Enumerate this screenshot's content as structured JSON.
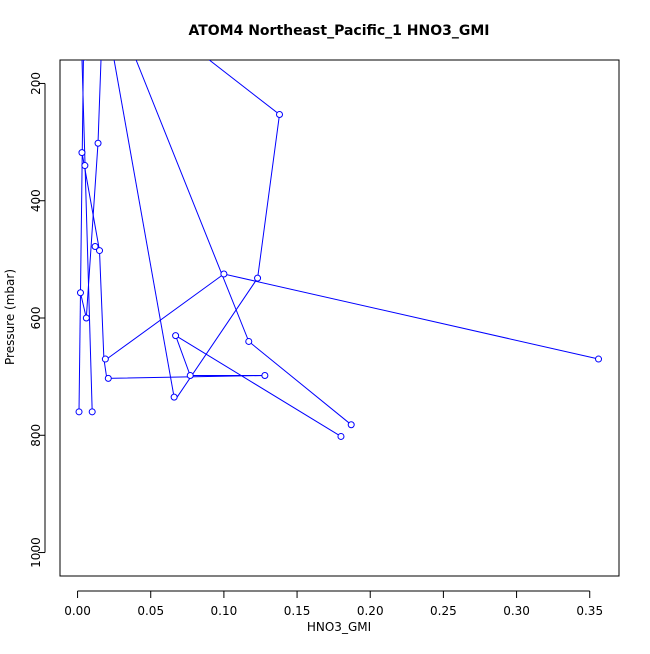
{
  "chart_data": {
    "type": "line",
    "title": "ATOM4 Northeast_Pacific_1 HNO3_GMI",
    "xlabel": "HNO3_GMI",
    "ylabel": "Pressure (mbar)",
    "xlim": [
      -0.012,
      0.37
    ],
    "ylim": [
      1040,
      160
    ],
    "y_reversed": true,
    "x_ticks": [
      0.0,
      0.05,
      0.1,
      0.15,
      0.2,
      0.25,
      0.3,
      0.35
    ],
    "x_tick_labels": [
      "0.00",
      "0.05",
      "0.10",
      "0.15",
      "0.20",
      "0.25",
      "0.30",
      "0.35"
    ],
    "y_ticks": [
      200,
      400,
      600,
      800,
      1000
    ],
    "y_tick_labels": [
      "200",
      "400",
      "600",
      "800",
      "1000"
    ],
    "grid": false,
    "series_color": "#0000ff",
    "marker": "open-circle",
    "line_segments": [
      {
        "x": [
          0.001,
          0.004
        ],
        "y": [
          760,
          160
        ]
      },
      {
        "x": [
          0.01,
          0.003
        ],
        "y": [
          760,
          160
        ]
      },
      {
        "x": [
          0.006,
          0.005
        ],
        "y": [
          160,
          160
        ]
      },
      {
        "x": [
          0.003,
          0.015,
          0.018,
          0.02,
          0.128,
          0.077,
          0.067,
          0.18
        ],
        "y": [
          318,
          485,
          670,
          703,
          698,
          698,
          630,
          802
        ]
      },
      {
        "x": [
          0.187,
          0.117,
          0.04
        ],
        "y": [
          782,
          640,
          160
        ]
      },
      {
        "x": [
          0.066,
          0.025
        ],
        "y": [
          735,
          160
        ]
      },
      {
        "x": [
          0.002,
          0.006,
          0.014,
          0.016
        ],
        "y": [
          557,
          600,
          302,
          160
        ]
      },
      {
        "x": [
          0.02,
          0.1,
          0.356
        ],
        "y": [
          670,
          525,
          670
        ]
      },
      {
        "x": [
          0.068,
          0.123,
          0.138,
          0.09
        ],
        "y": [
          735,
          532,
          253,
          160
        ]
      }
    ],
    "points": [
      {
        "x": 0.001,
        "y": 760
      },
      {
        "x": 0.01,
        "y": 760
      },
      {
        "x": 0.003,
        "y": 318
      },
      {
        "x": 0.005,
        "y": 340
      },
      {
        "x": 0.002,
        "y": 557
      },
      {
        "x": 0.006,
        "y": 600
      },
      {
        "x": 0.014,
        "y": 302
      },
      {
        "x": 0.012,
        "y": 478
      },
      {
        "x": 0.015,
        "y": 485
      },
      {
        "x": 0.019,
        "y": 670
      },
      {
        "x": 0.021,
        "y": 703
      },
      {
        "x": 0.067,
        "y": 630
      },
      {
        "x": 0.066,
        "y": 735
      },
      {
        "x": 0.077,
        "y": 698
      },
      {
        "x": 0.1,
        "y": 525
      },
      {
        "x": 0.117,
        "y": 640
      },
      {
        "x": 0.123,
        "y": 532
      },
      {
        "x": 0.128,
        "y": 698
      },
      {
        "x": 0.138,
        "y": 253
      },
      {
        "x": 0.18,
        "y": 802
      },
      {
        "x": 0.187,
        "y": 782
      },
      {
        "x": 0.356,
        "y": 670
      }
    ]
  }
}
